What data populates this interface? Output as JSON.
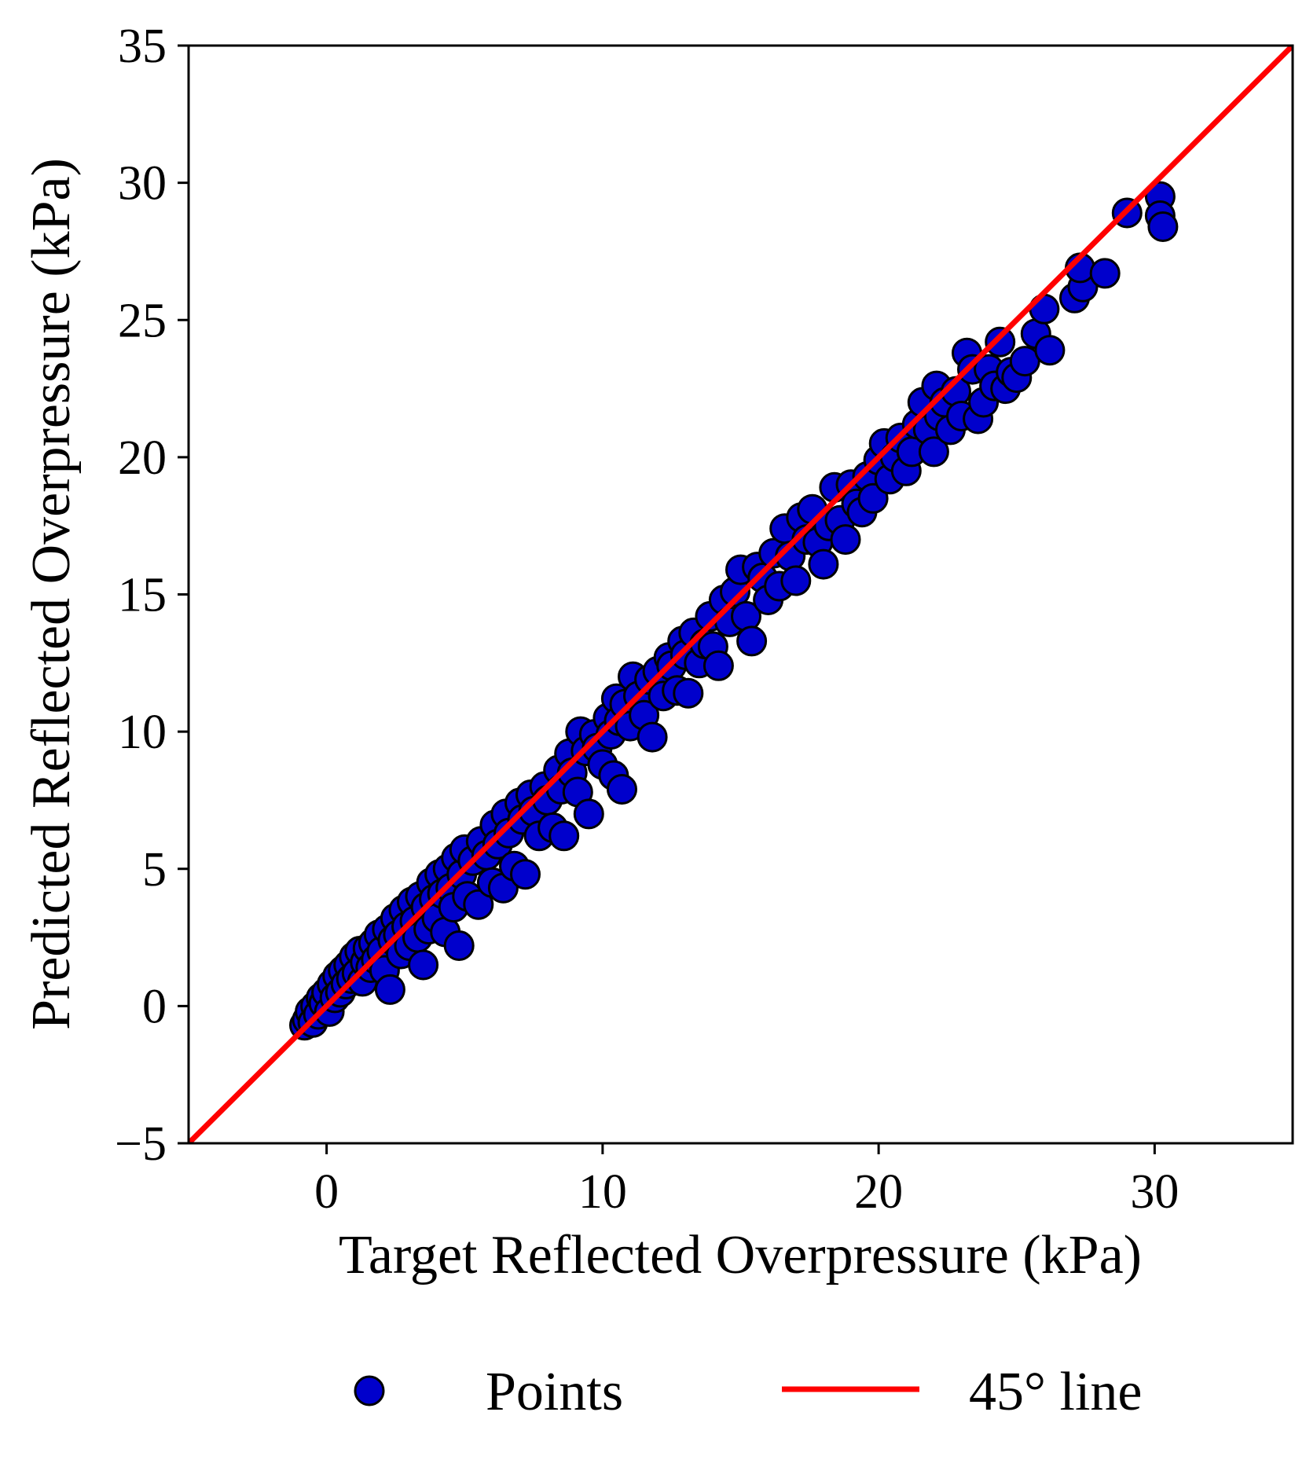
{
  "chart_data": {
    "type": "scatter",
    "title": "",
    "xlabel": "Target Reflected Overpressure (kPa)",
    "ylabel": "Predicted Reflected Overpressure (kPa)",
    "xlim": [
      -5,
      35
    ],
    "ylim": [
      -5,
      35
    ],
    "xticks": [
      0,
      10,
      20,
      30
    ],
    "yticks": [
      -5,
      0,
      5,
      10,
      15,
      20,
      25,
      30,
      35
    ],
    "xtick_labels": [
      "0",
      "10",
      "20",
      "30"
    ],
    "ytick_labels": [
      "−5",
      "0",
      "5",
      "10",
      "15",
      "20",
      "25",
      "30",
      "35"
    ],
    "grid": false,
    "legend": {
      "placement": "below",
      "entries": [
        {
          "label": "Points",
          "kind": "marker",
          "color": "#0000cc"
        },
        {
          "label": "45° line",
          "kind": "line",
          "color": "#ff0000"
        }
      ]
    },
    "series": [
      {
        "name": "Points",
        "marker_color": "#0000cc",
        "edge_color": "#000000",
        "points": [
          [
            -0.8,
            -0.7
          ],
          [
            -0.7,
            -0.5
          ],
          [
            -0.6,
            -0.2
          ],
          [
            -0.5,
            -0.6
          ],
          [
            -0.4,
            0.0
          ],
          [
            -0.3,
            -0.3
          ],
          [
            -0.2,
            0.3
          ],
          [
            -0.1,
            0.1
          ],
          [
            0.0,
            0.5
          ],
          [
            0.1,
            -0.2
          ],
          [
            0.2,
            0.8
          ],
          [
            0.3,
            0.3
          ],
          [
            0.4,
            1.1
          ],
          [
            0.5,
            0.5
          ],
          [
            0.6,
            1.3
          ],
          [
            0.7,
            0.8
          ],
          [
            0.8,
            1.5
          ],
          [
            0.9,
            1.0
          ],
          [
            1.0,
            1.8
          ],
          [
            1.1,
            1.2
          ],
          [
            1.2,
            2.0
          ],
          [
            1.3,
            0.9
          ],
          [
            1.4,
            1.6
          ],
          [
            1.5,
            2.1
          ],
          [
            1.6,
            1.4
          ],
          [
            1.7,
            2.3
          ],
          [
            1.8,
            1.7
          ],
          [
            1.9,
            2.6
          ],
          [
            2.0,
            2.0
          ],
          [
            2.1,
            1.3
          ],
          [
            2.2,
            2.8
          ],
          [
            2.3,
            0.6
          ],
          [
            2.4,
            2.4
          ],
          [
            2.5,
            3.2
          ],
          [
            2.6,
            2.6
          ],
          [
            2.7,
            1.9
          ],
          [
            2.8,
            3.5
          ],
          [
            2.9,
            2.9
          ],
          [
            3.0,
            2.2
          ],
          [
            3.1,
            3.8
          ],
          [
            3.2,
            3.1
          ],
          [
            3.3,
            2.5
          ],
          [
            3.4,
            4.0
          ],
          [
            3.5,
            1.5
          ],
          [
            3.6,
            3.6
          ],
          [
            3.7,
            2.8
          ],
          [
            3.8,
            4.5
          ],
          [
            3.9,
            3.9
          ],
          [
            4.0,
            3.2
          ],
          [
            4.1,
            4.8
          ],
          [
            4.2,
            4.1
          ],
          [
            4.3,
            2.7
          ],
          [
            4.4,
            5.0
          ],
          [
            4.5,
            4.3
          ],
          [
            4.6,
            3.6
          ],
          [
            4.7,
            5.4
          ],
          [
            4.8,
            2.2
          ],
          [
            4.9,
            4.8
          ],
          [
            5.0,
            5.7
          ],
          [
            5.1,
            4.0
          ],
          [
            5.3,
            5.3
          ],
          [
            5.5,
            3.7
          ],
          [
            5.6,
            6.0
          ],
          [
            5.8,
            5.5
          ],
          [
            6.0,
            4.5
          ],
          [
            6.1,
            6.6
          ],
          [
            6.2,
            5.9
          ],
          [
            6.4,
            4.3
          ],
          [
            6.5,
            7.0
          ],
          [
            6.6,
            6.3
          ],
          [
            6.8,
            5.1
          ],
          [
            7.0,
            7.4
          ],
          [
            7.1,
            6.8
          ],
          [
            7.2,
            4.8
          ],
          [
            7.4,
            7.7
          ],
          [
            7.5,
            7.1
          ],
          [
            7.7,
            6.2
          ],
          [
            7.9,
            8.0
          ],
          [
            8.0,
            7.5
          ],
          [
            8.2,
            6.5
          ],
          [
            8.4,
            8.6
          ],
          [
            8.5,
            7.9
          ],
          [
            8.6,
            6.2
          ],
          [
            8.8,
            9.2
          ],
          [
            8.9,
            8.5
          ],
          [
            9.1,
            7.8
          ],
          [
            9.2,
            10.0
          ],
          [
            9.4,
            9.3
          ],
          [
            9.5,
            7.0
          ],
          [
            9.7,
            9.9
          ],
          [
            9.8,
            9.4
          ],
          [
            10.0,
            8.8
          ],
          [
            10.2,
            10.5
          ],
          [
            10.3,
            9.9
          ],
          [
            10.4,
            8.4
          ],
          [
            10.5,
            11.2
          ],
          [
            10.6,
            10.4
          ],
          [
            10.7,
            7.9
          ],
          [
            10.8,
            11.0
          ],
          [
            11.0,
            10.2
          ],
          [
            11.1,
            12.0
          ],
          [
            11.3,
            11.3
          ],
          [
            11.5,
            10.6
          ],
          [
            11.7,
            11.9
          ],
          [
            11.8,
            9.8
          ],
          [
            12.0,
            12.2
          ],
          [
            12.2,
            11.3
          ],
          [
            12.4,
            12.7
          ],
          [
            12.5,
            12.4
          ],
          [
            12.7,
            11.5
          ],
          [
            12.9,
            13.3
          ],
          [
            13.0,
            12.8
          ],
          [
            13.1,
            11.4
          ],
          [
            13.3,
            13.6
          ],
          [
            13.5,
            12.5
          ],
          [
            13.7,
            13.2
          ],
          [
            13.9,
            14.2
          ],
          [
            14.0,
            13.1
          ],
          [
            14.2,
            12.4
          ],
          [
            14.4,
            14.8
          ],
          [
            14.6,
            14.0
          ],
          [
            14.8,
            15.1
          ],
          [
            15.0,
            15.9
          ],
          [
            15.2,
            14.2
          ],
          [
            15.4,
            13.3
          ],
          [
            15.6,
            16.0
          ],
          [
            15.8,
            15.6
          ],
          [
            16.0,
            14.8
          ],
          [
            16.2,
            16.5
          ],
          [
            16.4,
            15.3
          ],
          [
            16.6,
            17.4
          ],
          [
            16.8,
            16.4
          ],
          [
            17.0,
            15.5
          ],
          [
            17.2,
            17.8
          ],
          [
            17.4,
            17.0
          ],
          [
            17.6,
            18.1
          ],
          [
            17.8,
            16.9
          ],
          [
            18.0,
            16.1
          ],
          [
            18.2,
            17.5
          ],
          [
            18.4,
            18.9
          ],
          [
            18.6,
            17.7
          ],
          [
            18.8,
            17.0
          ],
          [
            19.0,
            19.0
          ],
          [
            19.2,
            18.3
          ],
          [
            19.4,
            18.0
          ],
          [
            19.6,
            19.3
          ],
          [
            19.8,
            18.5
          ],
          [
            20.0,
            19.9
          ],
          [
            20.2,
            20.5
          ],
          [
            20.4,
            19.2
          ],
          [
            20.6,
            20.0
          ],
          [
            20.8,
            20.7
          ],
          [
            21.0,
            19.5
          ],
          [
            21.2,
            20.2
          ],
          [
            21.4,
            21.2
          ],
          [
            21.6,
            22.0
          ],
          [
            21.8,
            21.0
          ],
          [
            22.0,
            20.2
          ],
          [
            22.1,
            22.6
          ],
          [
            22.2,
            21.5
          ],
          [
            22.4,
            22.0
          ],
          [
            22.6,
            21.0
          ],
          [
            22.8,
            22.4
          ],
          [
            23.0,
            21.5
          ],
          [
            23.2,
            23.8
          ],
          [
            23.4,
            23.2
          ],
          [
            23.6,
            21.4
          ],
          [
            23.8,
            22.0
          ],
          [
            24.0,
            23.2
          ],
          [
            24.2,
            22.6
          ],
          [
            24.4,
            24.2
          ],
          [
            24.6,
            22.5
          ],
          [
            24.8,
            23.1
          ],
          [
            25.0,
            22.9
          ],
          [
            25.3,
            23.5
          ],
          [
            25.7,
            24.5
          ],
          [
            26.0,
            25.4
          ],
          [
            26.2,
            23.9
          ],
          [
            27.1,
            25.8
          ],
          [
            27.4,
            26.2
          ],
          [
            27.3,
            26.9
          ],
          [
            28.2,
            26.7
          ],
          [
            29.0,
            28.9
          ],
          [
            30.2,
            29.5
          ],
          [
            30.2,
            28.8
          ],
          [
            30.3,
            28.4
          ]
        ]
      },
      {
        "name": "45° line",
        "line_color": "#ff0000",
        "x": [
          -5,
          35
        ],
        "y": [
          -5,
          35
        ]
      }
    ]
  }
}
